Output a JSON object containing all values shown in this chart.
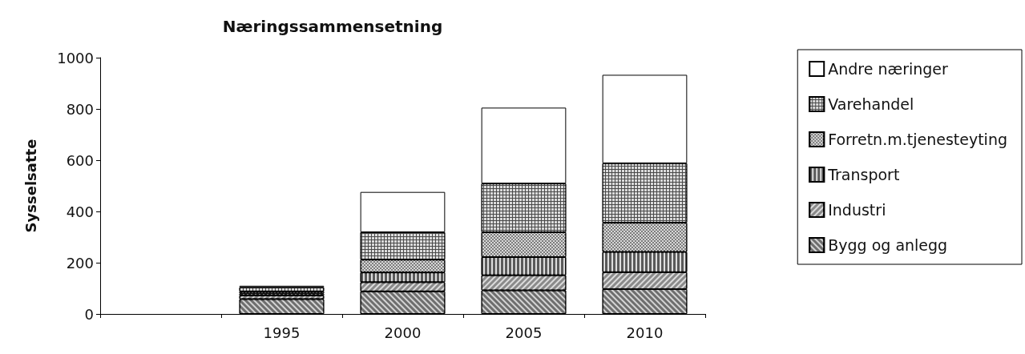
{
  "chart_data": {
    "type": "bar",
    "title": "Næringssammensetning",
    "ylabel": "Sysselsatte",
    "categories": [
      null,
      "1995",
      "2000",
      "2005",
      "2010"
    ],
    "stacked": true,
    "ylim": [
      0,
      1000
    ],
    "yticks": [
      0,
      200,
      400,
      600,
      800,
      1000
    ],
    "grid": false,
    "legend": "right",
    "series": [
      {
        "name": "Bygg og anlegg",
        "color": "#6e6e6e",
        "values": [
          null,
          58,
          88,
          92,
          97
        ]
      },
      {
        "name": "Industri",
        "color": "#8a8a8a",
        "values": [
          null,
          14,
          36,
          59,
          66
        ]
      },
      {
        "name": "Transport",
        "color": "#5a5a5a",
        "values": [
          null,
          8,
          38,
          71,
          79
        ]
      },
      {
        "name": "Forretn.m.tjenesteyting",
        "color": "#7c7c7c",
        "values": [
          null,
          8,
          50,
          97,
          114
        ]
      },
      {
        "name": "Varehandel",
        "color": "#4a4a4a",
        "values": [
          null,
          16,
          107,
          190,
          232
        ]
      },
      {
        "name": "Andre næringer",
        "color": "#ffffff",
        "values": [
          null,
          6,
          157,
          296,
          345
        ]
      }
    ]
  }
}
